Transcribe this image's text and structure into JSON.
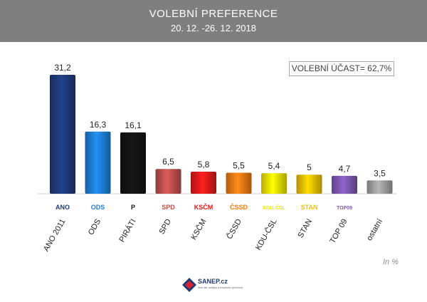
{
  "header": {
    "title": "VOLEBNÍ PREFERENCE",
    "subtitle": "20. 12. -26. 12. 2018"
  },
  "turnout_label": "VOLEBNÍ ÚČAST= 62,7%",
  "unit_label": "In %",
  "footer": {
    "brand": "SANEP.cz",
    "tagline": "Sběr dat, analýzy a empirická výzkumná"
  },
  "logos": [
    "ANO",
    "ODS",
    "P",
    "SPD",
    "KSČM",
    "ČSSD",
    "KDU-ČSL",
    "STAN",
    "TOP09",
    ""
  ],
  "colors": {
    "header_bg": "#7f7f7f",
    "ANO 2011": "#1f3a7a",
    "ODS": "#1e7fd6",
    "PIRÁTI": "#141414",
    "SPD": "#c0504d",
    "KSČM": "#e11b1b",
    "ČSSD": "#ef7b14",
    "KDU-ČSL": "#f2e600",
    "STAN": "#f2c200",
    "TOP 09": "#7f58b3",
    "ostatní": "#a0a0a0"
  },
  "chart_data": {
    "type": "bar",
    "title": "VOLEBNÍ PREFERENCE",
    "subtitle": "20. 12. -26. 12. 2018",
    "categories": [
      "ANO 2011",
      "ODS",
      "PIRÁTI",
      "SPD",
      "KSČM",
      "ČSSD",
      "KDU-ČSL",
      "STAN",
      "TOP 09",
      "ostatní"
    ],
    "values": [
      31.2,
      16.3,
      16.1,
      6.5,
      5.8,
      5.5,
      5.4,
      5,
      4.7,
      3.5
    ],
    "value_labels": [
      "31,2",
      "16,3",
      "16,1",
      "6,5",
      "5,8",
      "5,5",
      "5,4",
      "5",
      "4,7",
      "3,5"
    ],
    "ylabel": "In %",
    "ylim": [
      0,
      31.2
    ],
    "grid": false,
    "legend": "none"
  }
}
